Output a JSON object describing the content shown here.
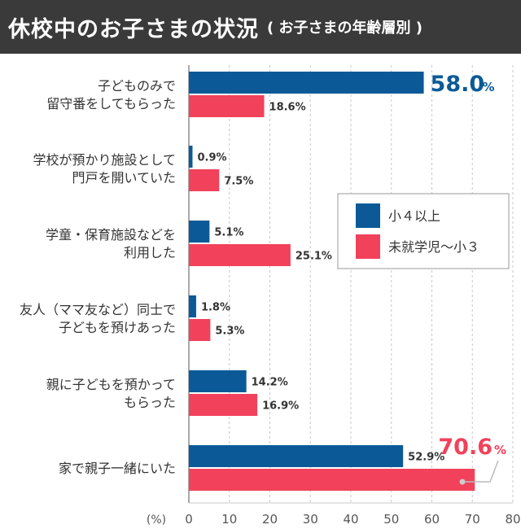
{
  "title": "休校中のお子さまの状況",
  "subtitle": "( お子さまの年齢層別 )",
  "chart_data": {
    "type": "bar",
    "orientation": "horizontal",
    "categories": [
      [
        "子どものみで",
        "留守番をしてもらった"
      ],
      [
        "学校が預かり施設として",
        "門戸を開いていた"
      ],
      [
        "学童・保育施設などを",
        "利用した"
      ],
      [
        "友人（ママ友など）同士で",
        "子どもを預けあった"
      ],
      [
        "親に子どもを預かって",
        "もらった"
      ],
      [
        "家で親子一緒にいた"
      ]
    ],
    "series": [
      {
        "name": "小４以上",
        "color": "#0b5a97",
        "values": [
          58.0,
          0.9,
          5.1,
          1.8,
          14.2,
          52.9
        ]
      },
      {
        "name": "未就学児〜小３",
        "color": "#f2415a",
        "values": [
          18.6,
          7.5,
          25.1,
          5.3,
          16.9,
          70.6
        ]
      }
    ],
    "highlights": [
      {
        "series": 0,
        "category": 0,
        "number": "58.0",
        "unit": "%",
        "color": "#0b5a97"
      },
      {
        "series": 1,
        "category": 5,
        "number": "70.6",
        "unit": "%",
        "color": "#f2415a"
      }
    ],
    "xlabel": "(%)",
    "xlim": [
      0,
      80
    ],
    "xticks": [
      "0",
      "10",
      "20",
      "30",
      "40",
      "50",
      "60",
      "70",
      "80"
    ],
    "grid": true,
    "legend_position": "right-middle"
  }
}
